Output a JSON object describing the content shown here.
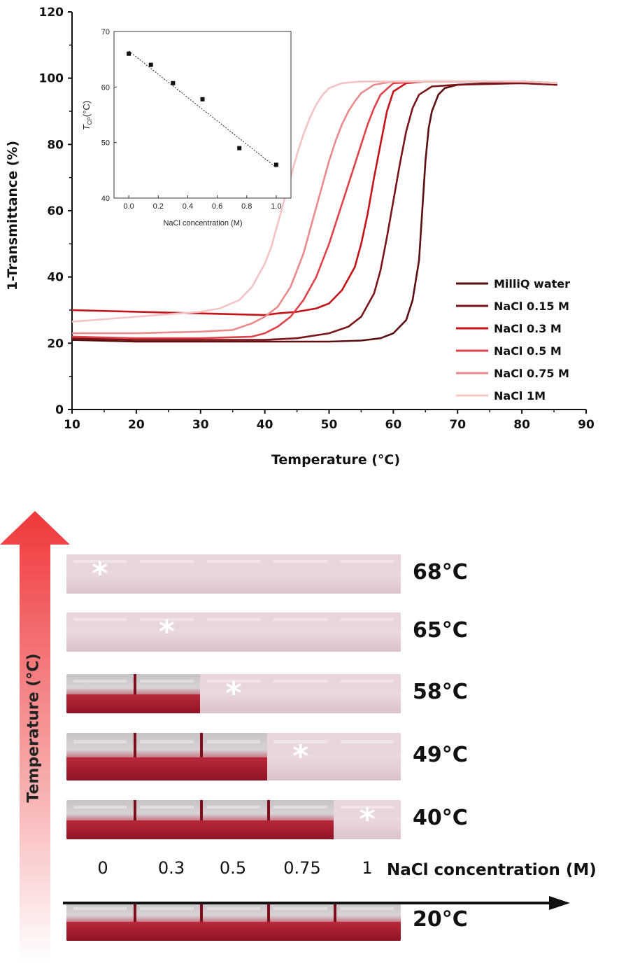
{
  "chart_data": [
    {
      "type": "line",
      "xlabel": "Temperature (°C)",
      "ylabel": "1-Transmittance (%)",
      "xlim": [
        10,
        90
      ],
      "ylim": [
        0,
        120
      ],
      "xticks": [
        10,
        20,
        30,
        40,
        50,
        60,
        70,
        80,
        90
      ],
      "yticks": [
        0,
        20,
        40,
        60,
        80,
        100,
        120
      ],
      "legend_position": "lower-right",
      "series": [
        {
          "name": "MilliQ water",
          "color": "#5a0f12",
          "x": [
            10,
            20,
            30,
            40,
            50,
            55,
            58,
            60,
            62,
            63,
            64,
            64.5,
            65,
            65.5,
            66,
            67,
            68,
            70,
            75,
            80,
            85.5
          ],
          "y": [
            21,
            20.5,
            20.5,
            20.5,
            20.5,
            20.8,
            21.5,
            23,
            27,
            33,
            45,
            60,
            75,
            85,
            90,
            95,
            97,
            98,
            98.5,
            98.5,
            98
          ]
        },
        {
          "name": "NaCl 0.15 M",
          "color": "#7a1418",
          "x": [
            10,
            20,
            30,
            40,
            45,
            50,
            53,
            55,
            57,
            58,
            59,
            60,
            61,
            62,
            63,
            64,
            66,
            70,
            80,
            85.5
          ],
          "y": [
            21.5,
            21,
            21,
            21,
            21.5,
            23,
            25,
            28,
            35,
            42,
            52,
            63,
            74,
            84,
            91,
            95,
            97.5,
            98,
            98.5,
            98
          ]
        },
        {
          "name": "NaCl 0.3 M",
          "color": "#c51318",
          "x": [
            10,
            20,
            30,
            40,
            42,
            45,
            48,
            50,
            52,
            54,
            55,
            56,
            57,
            58,
            59,
            60,
            62,
            65,
            70,
            80,
            85.5
          ],
          "y": [
            30,
            29.5,
            29,
            28.5,
            29,
            29.5,
            30.5,
            32,
            36,
            43,
            50,
            59,
            70,
            80,
            90,
            96,
            98.5,
            99,
            99,
            99,
            98.5
          ]
        },
        {
          "name": "NaCl 0.5 M",
          "color": "#e1424a",
          "x": [
            10,
            20,
            30,
            38,
            40,
            42,
            44,
            46,
            48,
            50,
            51,
            52,
            53,
            54,
            55,
            56,
            57,
            58,
            60,
            65,
            70,
            80,
            85.5
          ],
          "y": [
            22,
            21.5,
            21.5,
            22,
            23,
            25,
            28,
            33,
            40,
            50,
            56,
            62,
            68,
            74,
            80,
            86,
            91,
            95,
            98.5,
            99,
            99,
            99,
            98.5
          ]
        },
        {
          "name": "NaCl 0.75 M",
          "color": "#eb8a8c",
          "x": [
            10,
            20,
            30,
            35,
            38,
            40,
            42,
            44,
            46,
            47,
            48,
            49,
            50,
            51,
            52,
            53,
            54,
            55,
            57,
            60,
            65,
            70,
            80,
            85.5
          ],
          "y": [
            23,
            23,
            23.5,
            24,
            26,
            28,
            31,
            37,
            47,
            54,
            61,
            68,
            75,
            81,
            86,
            90,
            93,
            95.5,
            98,
            99,
            99,
            99,
            99,
            98.5
          ]
        },
        {
          "name": "NaCl 1M",
          "color": "#f4c3c4",
          "x": [
            10,
            20,
            30,
            33,
            36,
            38,
            40,
            41,
            42,
            43,
            44,
            45,
            46,
            47,
            48,
            49,
            50,
            52,
            55,
            60,
            70,
            80,
            85.5
          ],
          "y": [
            26.5,
            28,
            29.5,
            30.5,
            33,
            37,
            44,
            49,
            56,
            63,
            70,
            77,
            83,
            88,
            92,
            95,
            97,
            98.5,
            99,
            99,
            99,
            99,
            98.5
          ]
        }
      ]
    },
    {
      "type": "scatter",
      "xlabel": "NaCl concentration (M)",
      "ylabel": "T_CP (°C)",
      "xlim": [
        -0.1,
        1.1
      ],
      "ylim": [
        40,
        70
      ],
      "xticks": [
        0.0,
        0.2,
        0.4,
        0.6,
        0.8,
        1.0
      ],
      "yticks": [
        40,
        50,
        60,
        70
      ],
      "series": [
        {
          "x": [
            0.0,
            0.15,
            0.3,
            0.5,
            0.75,
            1.0
          ],
          "y": [
            66,
            64,
            60.7,
            57.8,
            49,
            46
          ]
        }
      ],
      "fit_line": {
        "x": [
          0.0,
          1.0
        ],
        "y": [
          66.5,
          45.5
        ]
      }
    }
  ],
  "inset": {
    "ylabel_main": "T",
    "ylabel_sub": "CP",
    "ylabel_unit": "(°C)",
    "xlabel": "NaCl concentration (M)"
  },
  "photo_panel": {
    "axis_title_vertical": "Temperature (°C)",
    "concentration_axis_title": "NaCl concentration (M)",
    "concentrations": [
      "0",
      "0.3",
      "0.5",
      "0.75",
      "1"
    ],
    "rows": [
      {
        "temp": "68°C",
        "cloudy": [
          true,
          true,
          true,
          true,
          true
        ],
        "marked": 0
      },
      {
        "temp": "65°C",
        "cloudy": [
          true,
          true,
          true,
          true,
          true
        ],
        "marked": 1
      },
      {
        "temp": "58°C",
        "cloudy": [
          false,
          false,
          true,
          true,
          true
        ],
        "marked": 2
      },
      {
        "temp": "49°C",
        "cloudy": [
          false,
          false,
          false,
          true,
          true
        ],
        "marked": 3
      },
      {
        "temp": "40°C",
        "cloudy": [
          false,
          false,
          false,
          false,
          true
        ],
        "marked": 4
      },
      {
        "temp": "20°C",
        "cloudy": [
          false,
          false,
          false,
          false,
          false
        ],
        "marked": -1
      }
    ],
    "asterisk": "*"
  }
}
